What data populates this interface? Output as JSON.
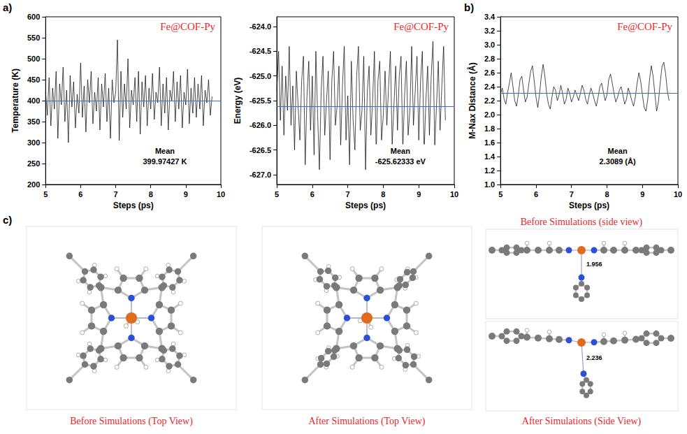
{
  "chart_data": [
    {
      "type": "line",
      "title": "Fe@COF-Py",
      "xlabel": "Steps (ps)",
      "ylabel": "Temperature (K)",
      "color": "#000000",
      "grid": false,
      "xlim": [
        5,
        10
      ],
      "xticks": [
        5,
        6,
        7,
        8,
        9,
        10
      ],
      "ylim": [
        200,
        600
      ],
      "yticks": [
        200,
        250,
        300,
        350,
        400,
        450,
        500,
        550,
        600
      ],
      "mean": 399.97427,
      "annotation": [
        "Mean",
        "399.97427 K"
      ],
      "x": [
        5,
        5.05,
        5.1,
        5.15,
        5.2,
        5.25,
        5.3,
        5.35,
        5.4,
        5.45,
        5.5,
        5.55,
        5.6,
        5.65,
        5.7,
        5.75,
        5.8,
        5.85,
        5.9,
        5.95,
        6,
        6.05,
        6.1,
        6.15,
        6.2,
        6.25,
        6.3,
        6.35,
        6.4,
        6.45,
        6.5,
        6.55,
        6.6,
        6.65,
        6.7,
        6.75,
        6.8,
        6.85,
        6.9,
        6.95,
        7,
        7.05,
        7.1,
        7.15,
        7.2,
        7.25,
        7.3,
        7.35,
        7.4,
        7.45,
        7.5,
        7.55,
        7.6,
        7.65,
        7.7,
        7.75,
        7.8,
        7.85,
        7.9,
        7.95,
        8,
        8.05,
        8.1,
        8.15,
        8.2,
        8.25,
        8.3,
        8.35,
        8.4,
        8.45,
        8.5,
        8.55,
        8.6,
        8.65,
        8.7,
        8.75,
        8.8,
        8.85,
        8.9,
        8.95,
        9,
        9.05,
        9.1,
        9.15,
        9.2,
        9.25,
        9.3,
        9.35,
        9.4,
        9.45,
        9.5,
        9.55,
        9.6,
        9.65,
        9.7,
        9.75
      ],
      "values": [
        420,
        365,
        455,
        340,
        430,
        380,
        470,
        310,
        440,
        390,
        480,
        350,
        425,
        300,
        460,
        385,
        445,
        335,
        415,
        370,
        490,
        360,
        435,
        325,
        450,
        395,
        470,
        345,
        420,
        375,
        455,
        330,
        440,
        385,
        465,
        350,
        430,
        310,
        450,
        395,
        420,
        545,
        305,
        470,
        360,
        440,
        380,
        500,
        335,
        425,
        390,
        455,
        350,
        470,
        320,
        445,
        385,
        460,
        340,
        430,
        380,
        465,
        355,
        420,
        395,
        480,
        340,
        440,
        370,
        455,
        330,
        425,
        400,
        470,
        350,
        445,
        380,
        460,
        335,
        420,
        390,
        475,
        345,
        430,
        370,
        455,
        360,
        440,
        380,
        460,
        340,
        425,
        395,
        450,
        365,
        410
      ]
    },
    {
      "type": "line",
      "title": "Fe@COF-Py",
      "xlabel": "Steps (ps)",
      "ylabel": "Energy (eV)",
      "color": "#000000",
      "grid": false,
      "xlim": [
        5,
        10
      ],
      "xticks": [
        5,
        6,
        7,
        8,
        9,
        10
      ],
      "ylim": [
        -627.2,
        -623.8
      ],
      "yticks": [
        {
          "value": -627,
          "label": "-627.0"
        },
        -626.5,
        {
          "value": -626,
          "label": "-626.0"
        },
        -625.5,
        {
          "value": -625,
          "label": "-625.0"
        },
        -624.5,
        {
          "value": -624,
          "label": "-624.0"
        }
      ],
      "mean": -625.62333,
      "annotation": [
        "Mean",
        "-625.62333 eV"
      ],
      "x": [
        5,
        5.05,
        5.1,
        5.15,
        5.2,
        5.25,
        5.3,
        5.35,
        5.4,
        5.45,
        5.5,
        5.55,
        5.6,
        5.65,
        5.7,
        5.75,
        5.8,
        5.85,
        5.9,
        5.95,
        6,
        6.05,
        6.1,
        6.15,
        6.2,
        6.25,
        6.3,
        6.35,
        6.4,
        6.45,
        6.5,
        6.55,
        6.6,
        6.65,
        6.7,
        6.75,
        6.8,
        6.85,
        6.9,
        6.95,
        7,
        7.05,
        7.1,
        7.15,
        7.2,
        7.25,
        7.3,
        7.35,
        7.4,
        7.45,
        7.5,
        7.55,
        7.6,
        7.65,
        7.7,
        7.75,
        7.8,
        7.85,
        7.9,
        7.95,
        8,
        8.05,
        8.1,
        8.15,
        8.2,
        8.25,
        8.3,
        8.35,
        8.4,
        8.45,
        8.5,
        8.55,
        8.6,
        8.65,
        8.7,
        8.75,
        8.8,
        8.85,
        8.9,
        8.95,
        9,
        9.05,
        9.1,
        9.15,
        9.2,
        9.25,
        9.3,
        9.35,
        9.4,
        9.45,
        9.5,
        9.55,
        9.6,
        9.65,
        9.7,
        9.75
      ],
      "values": [
        -625.3,
        -624.5,
        -625.9,
        -624.8,
        -626.2,
        -625.0,
        -625.7,
        -624.4,
        -626.0,
        -625.2,
        -626.5,
        -624.9,
        -625.6,
        -626.3,
        -625.1,
        -624.6,
        -626.8,
        -625.4,
        -624.7,
        -626.1,
        -625.0,
        -626.6,
        -624.5,
        -625.8,
        -626.9,
        -625.3,
        -624.6,
        -626.2,
        -625.5,
        -624.9,
        -626.7,
        -625.1,
        -624.5,
        -626.0,
        -625.6,
        -624.8,
        -626.4,
        -625.2,
        -624.4,
        -626.3,
        -625.4,
        -626.8,
        -624.7,
        -625.9,
        -626.5,
        -625.0,
        -624.4,
        -626.1,
        -625.7,
        -624.6,
        -626.9,
        -625.3,
        -624.8,
        -626.2,
        -625.5,
        -624.5,
        -626.6,
        -625.1,
        -624.7,
        -626.3,
        -625.8,
        -624.9,
        -626.0,
        -625.2,
        -624.5,
        -626.4,
        -625.6,
        -624.8,
        -626.1,
        -625.0,
        -624.6,
        -626.5,
        -625.4,
        -624.7,
        -626.2,
        -625.7,
        -624.4,
        -626.0,
        -625.3,
        -624.6,
        -626.3,
        -625.1,
        -624.5,
        -626.6,
        -625.5,
        -624.8,
        -626.2,
        -625.0,
        -624.3,
        -626.4,
        -625.6,
        -624.7,
        -626.1,
        -625.2,
        -624.4,
        -625.9
      ]
    },
    {
      "type": "line",
      "title": "Fe@COF-Py",
      "xlabel": "Steps (ps)",
      "ylabel": "M-Nax Distance (Å)",
      "color": "#000000",
      "grid": false,
      "xlim": [
        5,
        10
      ],
      "xticks": [
        5,
        6,
        7,
        8,
        9,
        10
      ],
      "ylim": [
        1,
        3.4
      ],
      "yticks": [
        {
          "value": 1,
          "label": "1.0"
        },
        1.2,
        1.4,
        1.6,
        1.8,
        {
          "value": 2,
          "label": "2.0"
        },
        2.2,
        2.4,
        2.6,
        2.8,
        {
          "value": 3,
          "label": "3.0"
        },
        3.2,
        3.4
      ],
      "mean": 2.3089,
      "annotation": [
        "Mean",
        "2.3089 (Å)"
      ],
      "x": [
        5,
        5.05,
        5.1,
        5.15,
        5.2,
        5.25,
        5.3,
        5.35,
        5.4,
        5.45,
        5.5,
        5.55,
        5.6,
        5.65,
        5.7,
        5.75,
        5.8,
        5.85,
        5.9,
        5.95,
        6,
        6.05,
        6.1,
        6.15,
        6.2,
        6.25,
        6.3,
        6.35,
        6.4,
        6.45,
        6.5,
        6.55,
        6.6,
        6.65,
        6.7,
        6.75,
        6.8,
        6.85,
        6.9,
        6.95,
        7,
        7.05,
        7.1,
        7.15,
        7.2,
        7.25,
        7.3,
        7.35,
        7.4,
        7.45,
        7.5,
        7.55,
        7.6,
        7.65,
        7.7,
        7.75,
        7.8,
        7.85,
        7.9,
        7.95,
        8,
        8.05,
        8.1,
        8.15,
        8.2,
        8.25,
        8.3,
        8.35,
        8.4,
        8.45,
        8.5,
        8.55,
        8.6,
        8.65,
        8.7,
        8.75,
        8.8,
        8.85,
        8.9,
        8.95,
        9,
        9.05,
        9.1,
        9.15,
        9.2,
        9.25,
        9.3,
        9.35,
        9.4,
        9.45,
        9.5,
        9.55,
        9.6,
        9.65,
        9.7,
        9.75
      ],
      "values": [
        2.3,
        2.38,
        2.22,
        2.15,
        2.32,
        2.45,
        2.6,
        2.4,
        2.2,
        2.12,
        2.28,
        2.5,
        2.55,
        2.35,
        2.18,
        2.25,
        2.45,
        2.62,
        2.7,
        2.48,
        2.25,
        2.1,
        2.3,
        2.55,
        2.72,
        2.55,
        2.3,
        2.15,
        2.08,
        2.25,
        2.4,
        2.35,
        2.2,
        2.28,
        2.42,
        2.3,
        2.15,
        2.22,
        2.38,
        2.3,
        2.18,
        2.25,
        2.35,
        2.28,
        2.2,
        2.3,
        2.42,
        2.35,
        2.22,
        2.15,
        2.28,
        2.38,
        2.3,
        2.2,
        2.12,
        2.25,
        2.4,
        2.45,
        2.32,
        2.2,
        2.28,
        2.5,
        2.58,
        2.45,
        2.3,
        2.18,
        2.25,
        2.35,
        2.4,
        2.28,
        2.15,
        2.22,
        2.38,
        2.3,
        2.2,
        2.12,
        2.25,
        2.45,
        2.6,
        2.48,
        2.28,
        2.1,
        2.05,
        2.22,
        2.5,
        2.7,
        2.55,
        2.3,
        2.05,
        2.18,
        2.45,
        2.68,
        2.75,
        2.6,
        2.35,
        2.2
      ]
    }
  ],
  "panel_labels": [
    "a)",
    "b)",
    "c)"
  ],
  "structures": {
    "top_views": [
      {
        "caption": "Before Simulations (Top View)"
      },
      {
        "caption": "After Simulations (Top View)"
      }
    ],
    "side_views": [
      {
        "caption": "Before Simulations (side view)",
        "fe_n_distance": 1.956
      },
      {
        "caption": "After Simulations (Side View)",
        "fe_n_distance": 2.236
      }
    ]
  }
}
